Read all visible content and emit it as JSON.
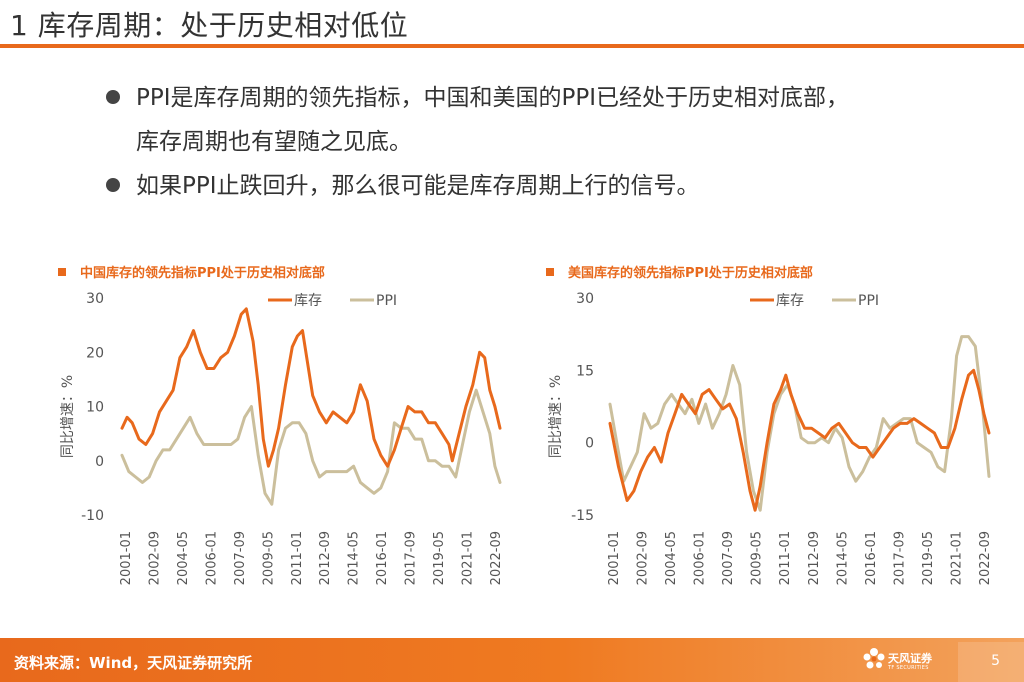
{
  "slide": {
    "title": "1 库存周期：处于历史相对低位",
    "page_number": "5"
  },
  "bullets": [
    {
      "text": "PPI是库存周期的领先指标，中国和美国的PPI已经处于历史相对底部，"
    },
    {
      "text": "库存周期也有望随之见底。"
    },
    {
      "text": "如果PPI止跌回升，那么很可能是库存周期上行的信号。"
    }
  ],
  "footer": {
    "source": "资料来源：Wind，天风证券研究所",
    "logo_name": "天风证券",
    "logo_sub": "TF SECURITIES"
  },
  "colors": {
    "accent": "#e8691c",
    "inventory": "#e8691c",
    "ppi": "#cbbf9c"
  },
  "chart_data": [
    {
      "type": "line",
      "title": "中国库存的领先指标PPI处于历史相对底部",
      "ylabel": "同比增速：%",
      "ylim": [
        -10,
        30
      ],
      "yticks": [
        -10,
        0,
        10,
        20,
        30
      ],
      "xlim": [
        2001.0,
        2023.2
      ],
      "xticks": [
        "2001-01",
        "2002-09",
        "2004-05",
        "2006-01",
        "2007-09",
        "2009-05",
        "2011-01",
        "2012-09",
        "2014-05",
        "2016-01",
        "2017-09",
        "2019-05",
        "2021-01",
        "2022-09"
      ],
      "legend": [
        "库存",
        "PPI"
      ],
      "series": [
        {
          "name": "库存",
          "x": [
            2001.0,
            2001.3,
            2001.6,
            2002.0,
            2002.4,
            2002.8,
            2003.2,
            2003.6,
            2004.0,
            2004.4,
            2004.8,
            2005.2,
            2005.6,
            2006.0,
            2006.4,
            2006.8,
            2007.2,
            2007.6,
            2008.0,
            2008.3,
            2008.7,
            2009.0,
            2009.3,
            2009.6,
            2009.9,
            2010.2,
            2010.6,
            2011.0,
            2011.3,
            2011.6,
            2011.9,
            2012.2,
            2012.6,
            2013.0,
            2013.4,
            2013.8,
            2014.2,
            2014.6,
            2015.0,
            2015.4,
            2015.8,
            2016.2,
            2016.6,
            2017.0,
            2017.4,
            2017.8,
            2018.2,
            2018.6,
            2019.0,
            2019.4,
            2019.8,
            2020.2,
            2020.4,
            2020.8,
            2021.2,
            2021.6,
            2022.0,
            2022.3,
            2022.6,
            2022.9,
            2023.2
          ],
          "values": [
            6,
            8,
            7,
            4,
            3,
            5,
            9,
            11,
            13,
            19,
            21,
            24,
            20,
            17,
            17,
            19,
            20,
            23,
            27,
            28,
            22,
            14,
            4,
            -1,
            2,
            6,
            14,
            21,
            23,
            24,
            18,
            12,
            9,
            7,
            9,
            8,
            7,
            9,
            14,
            11,
            4,
            1,
            -1,
            2,
            6,
            10,
            9,
            9,
            7,
            7,
            5,
            3,
            0,
            5,
            10,
            14,
            20,
            19,
            13,
            10,
            6
          ]
        },
        {
          "name": "PPI",
          "x": [
            2001.0,
            2001.4,
            2001.8,
            2002.2,
            2002.6,
            2003.0,
            2003.4,
            2003.8,
            2004.2,
            2004.6,
            2005.0,
            2005.4,
            2005.8,
            2006.2,
            2006.6,
            2007.0,
            2007.4,
            2007.8,
            2008.2,
            2008.6,
            2009.0,
            2009.4,
            2009.8,
            2010.2,
            2010.6,
            2011.0,
            2011.4,
            2011.8,
            2012.2,
            2012.6,
            2013.0,
            2013.4,
            2013.8,
            2014.2,
            2014.6,
            2015.0,
            2015.4,
            2015.8,
            2016.2,
            2016.6,
            2017.0,
            2017.4,
            2017.8,
            2018.2,
            2018.6,
            2019.0,
            2019.4,
            2019.8,
            2020.2,
            2020.6,
            2021.0,
            2021.4,
            2021.8,
            2022.2,
            2022.6,
            2022.9,
            2023.2
          ],
          "values": [
            1,
            -2,
            -3,
            -4,
            -3,
            0,
            2,
            2,
            4,
            6,
            8,
            5,
            3,
            3,
            3,
            3,
            3,
            4,
            8,
            10,
            1,
            -6,
            -8,
            2,
            6,
            7,
            7,
            5,
            0,
            -3,
            -2,
            -2,
            -2,
            -2,
            -1,
            -4,
            -5,
            -6,
            -5,
            -2,
            7,
            6,
            6,
            4,
            4,
            0,
            0,
            -1,
            -1,
            -3,
            3,
            9,
            13,
            9,
            5,
            -1,
            -4
          ]
        }
      ]
    },
    {
      "type": "line",
      "title": "美国库存的领先指标PPI处于历史相对底部",
      "ylabel": "同比增速：%",
      "ylim": [
        -15,
        30
      ],
      "yticks": [
        -15,
        0,
        15,
        30
      ],
      "xlim": [
        2001.0,
        2023.2
      ],
      "xticks": [
        "2001-01",
        "2002-09",
        "2004-05",
        "2006-01",
        "2007-09",
        "2009-05",
        "2011-01",
        "2012-09",
        "2014-05",
        "2016-01",
        "2017-09",
        "2019-05",
        "2021-01",
        "2022-09"
      ],
      "legend": [
        "库存",
        "PPI"
      ],
      "series": [
        {
          "name": "库存",
          "x": [
            2001.0,
            2001.5,
            2002.0,
            2002.4,
            2002.8,
            2003.2,
            2003.6,
            2004.0,
            2004.4,
            2004.8,
            2005.2,
            2005.6,
            2006.0,
            2006.4,
            2006.8,
            2007.2,
            2007.6,
            2008.0,
            2008.4,
            2008.8,
            2009.2,
            2009.5,
            2009.8,
            2010.2,
            2010.6,
            2011.0,
            2011.3,
            2011.6,
            2012.0,
            2012.4,
            2012.8,
            2013.2,
            2013.6,
            2014.0,
            2014.4,
            2014.8,
            2015.2,
            2015.6,
            2016.0,
            2016.4,
            2016.8,
            2017.2,
            2017.6,
            2018.0,
            2018.4,
            2018.8,
            2019.2,
            2019.6,
            2020.0,
            2020.4,
            2020.8,
            2021.2,
            2021.6,
            2022.0,
            2022.3,
            2022.6,
            2022.9,
            2023.2
          ],
          "values": [
            4,
            -5,
            -12,
            -10,
            -6,
            -3,
            -1,
            -4,
            2,
            6,
            10,
            8,
            6,
            10,
            11,
            9,
            7,
            8,
            5,
            -2,
            -10,
            -14,
            -9,
            0,
            8,
            11,
            14,
            10,
            6,
            3,
            3,
            2,
            1,
            3,
            4,
            2,
            0,
            -1,
            -1,
            -3,
            -1,
            1,
            3,
            4,
            4,
            5,
            4,
            3,
            2,
            -1,
            -1,
            3,
            9,
            14,
            15,
            11,
            6,
            2
          ]
        },
        {
          "name": "PPI",
          "x": [
            2001.0,
            2001.4,
            2001.8,
            2002.2,
            2002.6,
            2003.0,
            2003.4,
            2003.8,
            2004.2,
            2004.6,
            2005.0,
            2005.4,
            2005.8,
            2006.2,
            2006.6,
            2007.0,
            2007.4,
            2007.8,
            2008.2,
            2008.6,
            2009.0,
            2009.4,
            2009.8,
            2010.2,
            2010.6,
            2011.0,
            2011.4,
            2011.8,
            2012.2,
            2012.6,
            2013.0,
            2013.4,
            2013.8,
            2014.2,
            2014.6,
            2015.0,
            2015.4,
            2015.8,
            2016.2,
            2016.6,
            2017.0,
            2017.4,
            2017.8,
            2018.2,
            2018.6,
            2019.0,
            2019.4,
            2019.8,
            2020.2,
            2020.6,
            2021.0,
            2021.3,
            2021.6,
            2022.0,
            2022.4,
            2022.8,
            2023.2
          ],
          "values": [
            8,
            0,
            -8,
            -5,
            -2,
            6,
            3,
            4,
            8,
            10,
            8,
            6,
            9,
            4,
            8,
            3,
            6,
            10,
            16,
            12,
            -2,
            -10,
            -14,
            -2,
            6,
            10,
            12,
            8,
            1,
            0,
            0,
            1,
            0,
            3,
            1,
            -5,
            -8,
            -6,
            -3,
            -1,
            5,
            3,
            4,
            5,
            5,
            0,
            -1,
            -2,
            -5,
            -6,
            5,
            18,
            22,
            22,
            20,
            8,
            -7
          ]
        }
      ]
    }
  ]
}
